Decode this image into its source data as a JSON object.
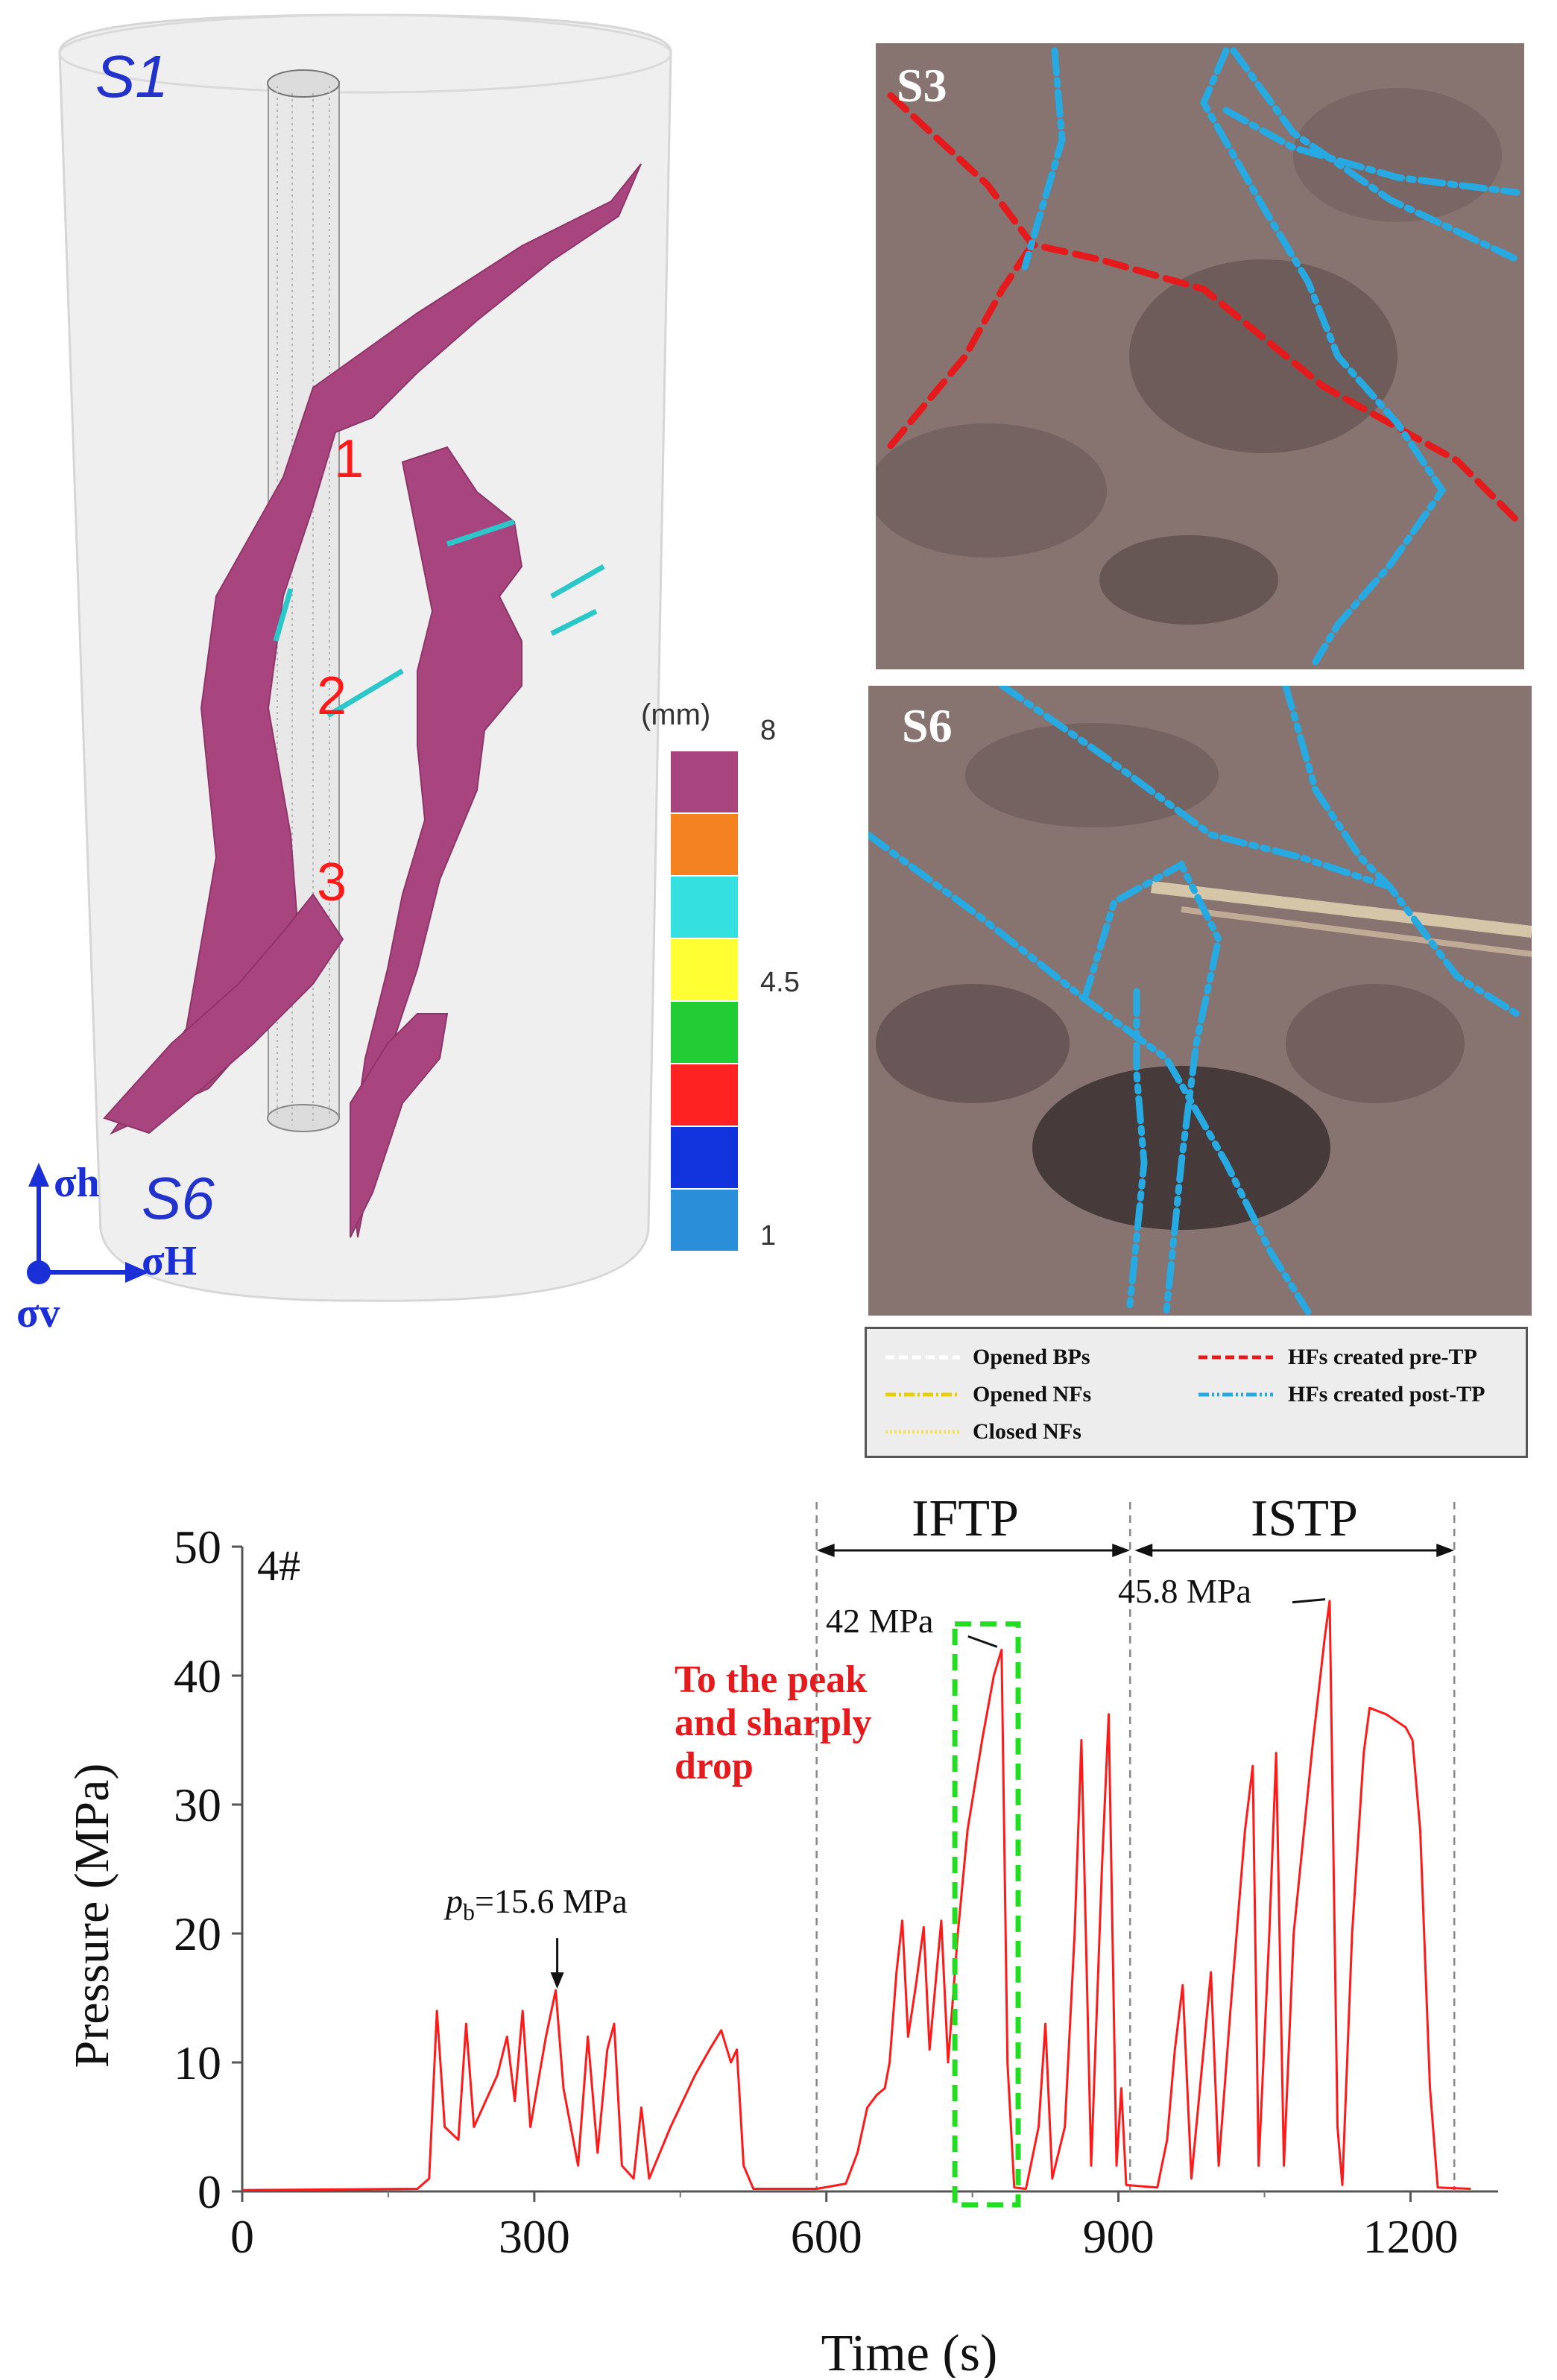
{
  "model3d": {
    "sample_top_label": "S1",
    "sample_bottom_label": "S6",
    "fracture_labels": [
      "1",
      "2",
      "3"
    ],
    "axes": {
      "h": "σh",
      "H": "σH",
      "v": "σv"
    },
    "colorbar": {
      "unit": "(mm)",
      "tick_labels": [
        "8",
        "4.5",
        "1"
      ],
      "colors": [
        "#a8457f",
        "#f58220",
        "#35e0e0",
        "#ffff33",
        "#22cc33",
        "#ff2222",
        "#1133dd",
        "#2a8fd8"
      ]
    }
  },
  "photos": {
    "top_label": "S3",
    "bottom_label": "S6",
    "background": "#7d6a68",
    "legend": [
      {
        "label": "Opened BPs",
        "color": "#ffffff",
        "dash": "12,6"
      },
      {
        "label": "HFs created pre-TP",
        "color": "#e41a1c",
        "dash": "12,6"
      },
      {
        "label": "Opened NFs",
        "color": "#e8d000",
        "dash": "14,4,3,4"
      },
      {
        "label": "HFs created post-TP",
        "color": "#27a9e1",
        "dash": "14,4,3,4,3,4"
      },
      {
        "label": "Closed NFs",
        "color": "#f2e45a",
        "dash": "3,3"
      }
    ]
  },
  "pressure_chart": {
    "sample_label": "4#",
    "phase_labels": [
      "IFTP",
      "ISTP"
    ],
    "breakdown_label_symbol": "p",
    "breakdown_label_subscript": "b",
    "breakdown_label_value": "=15.6 MPa",
    "peak1_label": "42 MPa",
    "peak2_label": "45.8 MPa",
    "annotation_lines": [
      "To the peak",
      "and sharply",
      "drop"
    ],
    "line_color": "#ff1a1a",
    "annotation_color": "#e41a1c",
    "box_color": "#22dd22"
  },
  "chart_data": {
    "type": "line",
    "xlabel": "Time (s)",
    "ylabel": "Pressure (MPa)",
    "xlim": [
      0,
      1290
    ],
    "ylim": [
      0,
      50
    ],
    "xticks": [
      0,
      300,
      600,
      900,
      1200
    ],
    "yticks": [
      0,
      10,
      20,
      30,
      40,
      50
    ],
    "phase_boundaries_s": [
      590,
      912,
      1245
    ],
    "breakdown_point": {
      "x": 322,
      "y": 15.6
    },
    "peak_points": [
      {
        "x": 780,
        "y": 42
      },
      {
        "x": 1117,
        "y": 45.8
      }
    ],
    "highlight_box": {
      "x": [
        732,
        797
      ],
      "y": [
        0,
        44
      ]
    },
    "series": [
      {
        "values": [
          [
            0,
            0.1
          ],
          [
            180,
            0.2
          ],
          [
            192,
            1
          ],
          [
            200,
            14
          ],
          [
            208,
            5
          ],
          [
            222,
            4
          ],
          [
            230,
            13
          ],
          [
            238,
            5
          ],
          [
            262,
            9
          ],
          [
            272,
            12
          ],
          [
            280,
            7
          ],
          [
            288,
            14
          ],
          [
            296,
            5
          ],
          [
            312,
            12
          ],
          [
            322,
            15.6
          ],
          [
            330,
            8
          ],
          [
            345,
            2
          ],
          [
            355,
            12
          ],
          [
            365,
            3
          ],
          [
            375,
            11
          ],
          [
            382,
            13
          ],
          [
            390,
            2
          ],
          [
            402,
            1
          ],
          [
            410,
            6.5
          ],
          [
            418,
            1
          ],
          [
            440,
            5
          ],
          [
            465,
            9
          ],
          [
            480,
            11
          ],
          [
            492,
            12.5
          ],
          [
            502,
            10
          ],
          [
            508,
            11
          ],
          [
            515,
            2
          ],
          [
            525,
            0.2
          ],
          [
            590,
            0.2
          ],
          [
            620,
            0.6
          ],
          [
            632,
            3
          ],
          [
            642,
            6.5
          ],
          [
            652,
            7.5
          ],
          [
            660,
            8
          ],
          [
            665,
            10
          ],
          [
            672,
            17
          ],
          [
            678,
            21
          ],
          [
            684,
            12
          ],
          [
            692,
            16
          ],
          [
            700,
            20.5
          ],
          [
            706,
            11
          ],
          [
            712,
            16
          ],
          [
            718,
            21
          ],
          [
            725,
            10
          ],
          [
            735,
            20
          ],
          [
            745,
            28
          ],
          [
            760,
            35
          ],
          [
            772,
            40
          ],
          [
            780,
            42
          ],
          [
            786,
            10
          ],
          [
            793,
            0.3
          ],
          [
            805,
            0.2
          ],
          [
            818,
            5
          ],
          [
            825,
            13
          ],
          [
            832,
            1
          ],
          [
            845,
            5
          ],
          [
            855,
            20
          ],
          [
            862,
            35
          ],
          [
            872,
            2
          ],
          [
            883,
            25
          ],
          [
            890,
            37
          ],
          [
            898,
            2
          ],
          [
            903,
            8
          ],
          [
            908,
            0.5
          ],
          [
            940,
            0.3
          ],
          [
            950,
            4
          ],
          [
            958,
            11
          ],
          [
            966,
            16
          ],
          [
            975,
            1
          ],
          [
            985,
            9
          ],
          [
            995,
            17
          ],
          [
            1003,
            2
          ],
          [
            1015,
            14
          ],
          [
            1030,
            28
          ],
          [
            1038,
            33
          ],
          [
            1044,
            2
          ],
          [
            1055,
            20
          ],
          [
            1062,
            34
          ],
          [
            1070,
            2
          ],
          [
            1080,
            20
          ],
          [
            1100,
            35
          ],
          [
            1112,
            43
          ],
          [
            1117,
            45.8
          ],
          [
            1125,
            5
          ],
          [
            1130,
            0.5
          ],
          [
            1140,
            20
          ],
          [
            1152,
            34
          ],
          [
            1158,
            37.5
          ],
          [
            1175,
            37
          ],
          [
            1195,
            36
          ],
          [
            1202,
            35
          ],
          [
            1210,
            28
          ],
          [
            1220,
            8
          ],
          [
            1228,
            0.3
          ],
          [
            1262,
            0.2
          ]
        ]
      }
    ]
  }
}
